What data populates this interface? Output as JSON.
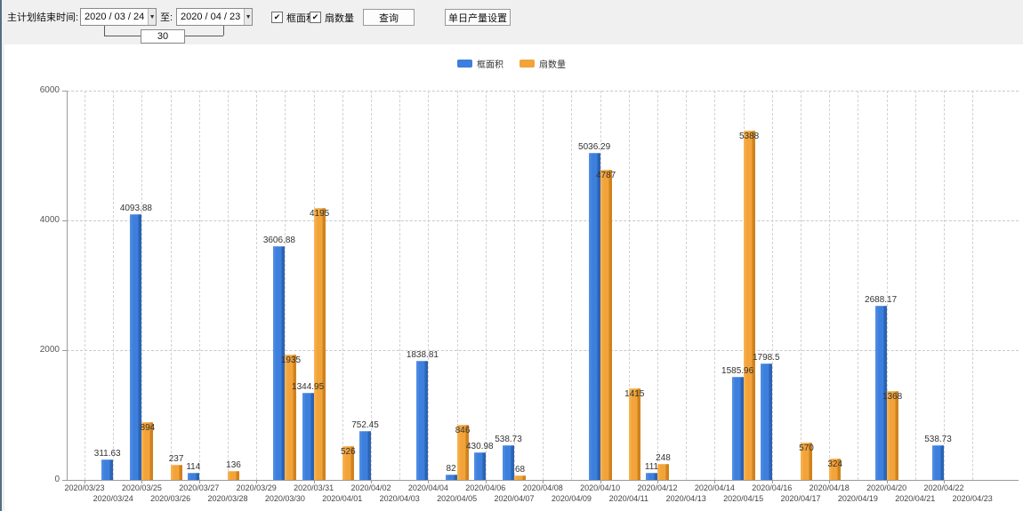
{
  "toolbar": {
    "end_time_label": "主计划结束时间:",
    "date_from": "2020 / 03 / 24",
    "to_label": "至:",
    "date_to": "2020 / 04 / 23",
    "interval_days": "30",
    "checkbox_frame_area": "框面积",
    "checkbox_fan_count": "扇数量",
    "check_glyph": "✔",
    "dropdown_glyph": "▼",
    "query_button": "查询",
    "daily_output_button": "单日产量设置"
  },
  "legend": [
    {
      "label": "框面积",
      "color": "#3d7fdc"
    },
    {
      "label": "扇数量",
      "color": "#f2a33a"
    }
  ],
  "chart_data": {
    "type": "bar",
    "title": "",
    "xlabel": "",
    "ylabel": "",
    "ylim": [
      0,
      6000
    ],
    "yticks": [
      0,
      2000,
      4000,
      6000
    ],
    "grid": true,
    "legend_position": "top",
    "categories": [
      "2020/03/23",
      "2020/03/24",
      "2020/03/25",
      "2020/03/26",
      "2020/03/27",
      "2020/03/28",
      "2020/03/29",
      "2020/03/30",
      "2020/03/31",
      "2020/04/01",
      "2020/04/02",
      "2020/04/03",
      "2020/04/04",
      "2020/04/05",
      "2020/04/06",
      "2020/04/07",
      "2020/04/08",
      "2020/04/09",
      "2020/04/10",
      "2020/04/11",
      "2020/04/12",
      "2020/04/13",
      "2020/04/14",
      "2020/04/15",
      "2020/04/16",
      "2020/04/17",
      "2020/04/18",
      "2020/04/19",
      "2020/04/20",
      "2020/04/21",
      "2020/04/22",
      "2020/04/23"
    ],
    "series": [
      {
        "name": "框面积",
        "color": "#3d7fdc",
        "color_dark": "#2c63b4",
        "color_light": "#5590e6",
        "values": [
          null,
          311.63,
          4093.88,
          null,
          114,
          null,
          null,
          3606.88,
          1344.95,
          null,
          752.45,
          null,
          1838.81,
          82,
          430.98,
          538.73,
          null,
          null,
          5036.29,
          null,
          111,
          null,
          null,
          1585.96,
          1798.5,
          null,
          null,
          null,
          2688.17,
          null,
          538.73,
          null
        ]
      },
      {
        "name": "扇数量",
        "color": "#f2a33a",
        "color_dark": "#d0831d",
        "color_light": "#f8b656",
        "values": [
          null,
          null,
          894,
          237,
          null,
          136,
          null,
          1935,
          4195,
          526,
          null,
          null,
          null,
          846,
          null,
          68,
          null,
          null,
          4787,
          1415,
          248,
          null,
          null,
          5388,
          null,
          570,
          324,
          null,
          1368,
          null,
          null,
          null
        ]
      }
    ]
  }
}
